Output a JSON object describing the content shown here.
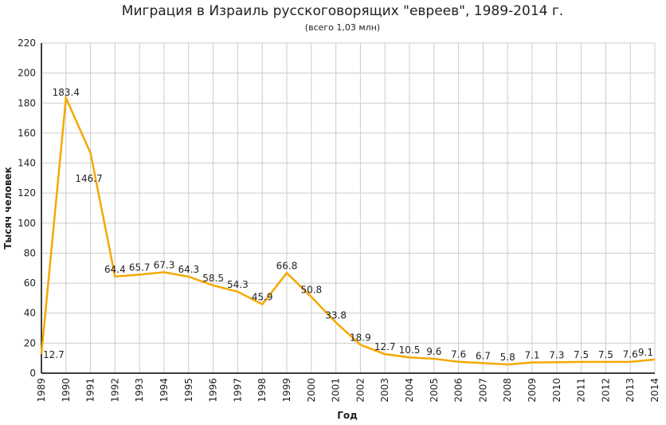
{
  "chart_data": {
    "type": "line",
    "title": "Миграция в Израиль русскоговорящих \"евреев\", 1989-2014 г.",
    "subtitle": "(всего 1,03 млн)",
    "xlabel": "Год",
    "ylabel": "Тысяч человек",
    "ylim": [
      0,
      220
    ],
    "yticks": [
      0,
      20,
      40,
      60,
      80,
      100,
      120,
      140,
      160,
      180,
      200,
      220
    ],
    "grid": true,
    "line_color": "#F5A800",
    "x": [
      "1989",
      "1990",
      "1991",
      "1992",
      "1993",
      "1994",
      "1995",
      "1996",
      "1997",
      "1998",
      "1999",
      "2000",
      "2001",
      "2002",
      "2003",
      "2004",
      "2005",
      "2006",
      "2007",
      "2008",
      "2009",
      "2010",
      "2011",
      "2012",
      "2013",
      "2014"
    ],
    "values": [
      12.7,
      183.4,
      146.7,
      64.4,
      65.7,
      67.3,
      64.3,
      58.5,
      54.3,
      45.9,
      66.8,
      50.8,
      33.8,
      18.9,
      12.7,
      10.5,
      9.6,
      7.6,
      6.7,
      5.8,
      7.1,
      7.3,
      7.5,
      7.5,
      7.6,
      9.1
    ]
  }
}
